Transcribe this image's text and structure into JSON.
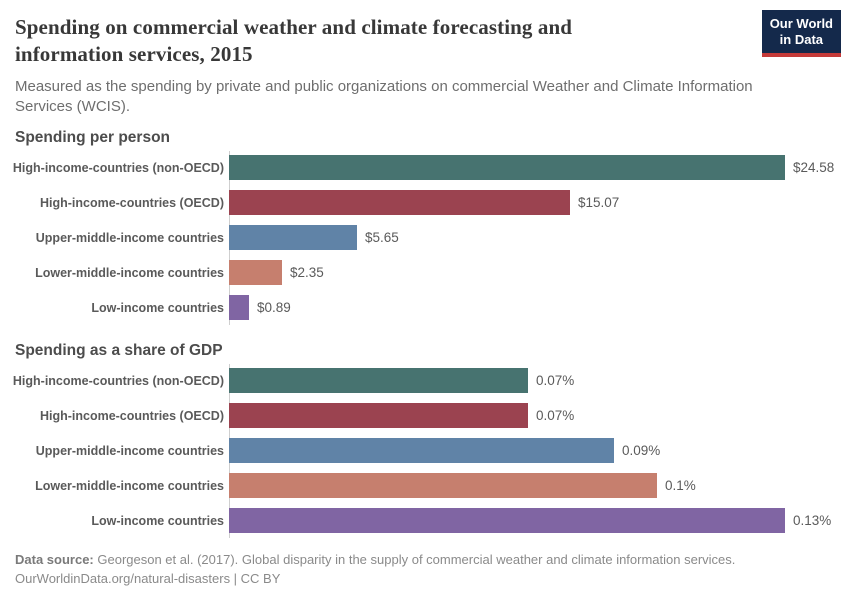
{
  "header": {
    "title": "Spending on commercial weather and climate forecasting and information services, 2015",
    "subtitle": "Measured as the spending by private and public organizations on commercial Weather and Climate Information Services (WCIS).",
    "logo": {
      "line1": "Our World",
      "line2": "in Data"
    }
  },
  "colors": {
    "bar_palette": [
      "#477370",
      "#9b4350",
      "#6083a7",
      "#c67f6e",
      "#8065a3"
    ],
    "logo_background": "#14294b",
    "logo_accent": "#c53a39",
    "axis_line": "#cfcfcf"
  },
  "chart_data": [
    {
      "type": "bar",
      "orientation": "horizontal",
      "title": "Spending per person",
      "categories": [
        "High-income-countries (non-OECD)",
        "High-income-countries (OECD)",
        "Upper-middle-income countries",
        "Lower-middle-income countries",
        "Low-income countries"
      ],
      "values": [
        24.58,
        15.07,
        5.65,
        2.35,
        0.89
      ],
      "value_labels": [
        "$24.58",
        "$15.07",
        "$5.65",
        "$2.35",
        "$0.89"
      ],
      "xlim": [
        0,
        24.58
      ],
      "grid": false,
      "legend": false
    },
    {
      "type": "bar",
      "orientation": "horizontal",
      "title": "Spending as a share of GDP",
      "categories": [
        "High-income-countries (non-OECD)",
        "High-income-countries (OECD)",
        "Upper-middle-income countries",
        "Lower-middle-income countries",
        "Low-income countries"
      ],
      "values": [
        0.07,
        0.07,
        0.09,
        0.1,
        0.13
      ],
      "value_labels": [
        "0.07%",
        "0.07%",
        "0.09%",
        "0.1%",
        "0.13%"
      ],
      "xlim": [
        0,
        0.13
      ],
      "grid": false,
      "legend": false
    }
  ],
  "footer": {
    "source_bold": "Data source:",
    "source_text": "Georgeson et al. (2017). Global disparity in the supply of commercial weather and climate information services.",
    "license": "OurWorldinData.org/natural-disasters | CC BY"
  }
}
